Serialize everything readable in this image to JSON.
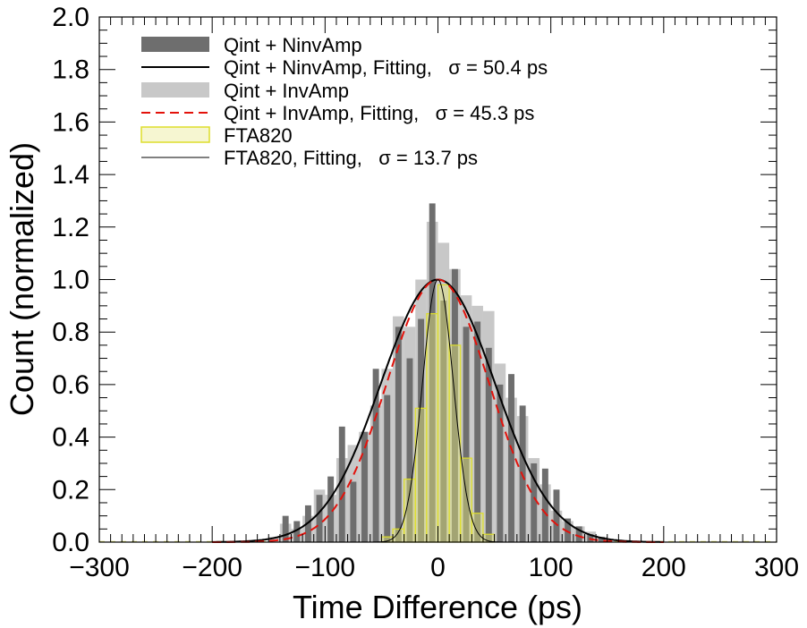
{
  "chart_data": {
    "type": "bar",
    "xlabel": "Time Difference (ps)",
    "ylabel": "Count (normalized)",
    "xlim": [
      -300,
      300
    ],
    "ylim": [
      0,
      2.0
    ],
    "bin_width": 10,
    "xticks": [
      "−300",
      "−200",
      "−100",
      "0",
      "100",
      "200",
      "300"
    ],
    "xtick_values": [
      -300,
      -200,
      -100,
      0,
      100,
      200,
      300
    ],
    "yticks": [
      "0.0",
      "0.2",
      "0.4",
      "0.6",
      "0.8",
      "1.0",
      "1.2",
      "1.4",
      "1.6",
      "1.8",
      "2.0"
    ],
    "ytick_values": [
      0,
      0.2,
      0.4,
      0.6,
      0.8,
      1.0,
      1.2,
      1.4,
      1.6,
      1.8,
      2.0
    ],
    "grid": false,
    "legend_position": "top-left",
    "legend": [
      {
        "label": "Qint + NinvAmp",
        "kind": "fill",
        "color": "#6e6e6e"
      },
      {
        "label": "Qint + NinvAmp, Fitting,   σ = 50.4 ps",
        "kind": "line",
        "color": "#000000",
        "dash": "none"
      },
      {
        "label": "Qint + InvAmp",
        "kind": "fill",
        "color": "#c8c8c8"
      },
      {
        "label": "Qint + InvAmp, Fitting,   σ = 45.3 ps",
        "kind": "line",
        "color": "#e3120b",
        "dash": "10,6"
      },
      {
        "label": "FTA820",
        "kind": "box",
        "color": "#e4e67a"
      },
      {
        "label": "FTA820, Fitting,   σ = 13.7 ps",
        "kind": "thinline",
        "color": "#000000",
        "dash": "none"
      }
    ],
    "series": [
      {
        "name": "Qint + InvAmp",
        "type": "histogram",
        "color": "#c8c8c8",
        "bins": [
          [
            -150,
            0.02
          ],
          [
            -140,
            0.07
          ],
          [
            -130,
            0.05
          ],
          [
            -120,
            0.1
          ],
          [
            -110,
            0.2
          ],
          [
            -100,
            0.18
          ],
          [
            -90,
            0.32
          ],
          [
            -80,
            0.37
          ],
          [
            -70,
            0.42
          ],
          [
            -60,
            0.52
          ],
          [
            -50,
            0.66
          ],
          [
            -40,
            0.86
          ],
          [
            -30,
            0.82
          ],
          [
            -20,
            1.0
          ],
          [
            -10,
            1.22
          ],
          [
            0,
            1.14
          ],
          [
            10,
            1.04
          ],
          [
            20,
            0.94
          ],
          [
            30,
            0.9
          ],
          [
            40,
            0.88
          ],
          [
            50,
            0.68
          ],
          [
            60,
            0.55
          ],
          [
            70,
            0.48
          ],
          [
            80,
            0.32
          ],
          [
            90,
            0.22
          ],
          [
            100,
            0.12
          ],
          [
            110,
            0.08
          ],
          [
            120,
            0.06
          ],
          [
            130,
            0.04
          ],
          [
            140,
            0.02
          ]
        ]
      },
      {
        "name": "Qint + NinvAmp",
        "type": "histogram",
        "color": "#6e6e6e",
        "bins": [
          [
            -140,
            0.1
          ],
          [
            -130,
            0.08
          ],
          [
            -120,
            0.14
          ],
          [
            -110,
            0.18
          ],
          [
            -100,
            0.25
          ],
          [
            -90,
            0.44
          ],
          [
            -80,
            0.23
          ],
          [
            -70,
            0.42
          ],
          [
            -60,
            0.66
          ],
          [
            -50,
            0.56
          ],
          [
            -40,
            0.82
          ],
          [
            -30,
            0.7
          ],
          [
            -20,
            0.85
          ],
          [
            -10,
            1.29
          ],
          [
            0,
            0.92
          ],
          [
            10,
            1.04
          ],
          [
            20,
            0.82
          ],
          [
            30,
            0.84
          ],
          [
            40,
            0.74
          ],
          [
            50,
            0.6
          ],
          [
            60,
            0.64
          ],
          [
            70,
            0.52
          ],
          [
            80,
            0.3
          ],
          [
            90,
            0.28
          ],
          [
            100,
            0.2
          ],
          [
            110,
            0.09
          ],
          [
            120,
            0.06
          ],
          [
            130,
            0.03
          ],
          [
            140,
            0.02
          ]
        ]
      },
      {
        "name": "FTA820",
        "type": "histogram",
        "color": "#e4e67a",
        "bins": [
          [
            -50,
            0.02
          ],
          [
            -40,
            0.05
          ],
          [
            -30,
            0.24
          ],
          [
            -20,
            0.51
          ],
          [
            -10,
            0.87
          ],
          [
            0,
            0.98
          ],
          [
            10,
            0.75
          ],
          [
            20,
            0.32
          ],
          [
            30,
            0.11
          ],
          [
            40,
            0.03
          ]
        ]
      },
      {
        "name": "Qint + NinvAmp, Fitting",
        "type": "gaussian",
        "mean": 0,
        "sigma": 50.4,
        "amplitude": 1.0,
        "range": [
          -200,
          200
        ],
        "color": "#000000"
      },
      {
        "name": "Qint + InvAmp, Fitting",
        "type": "gaussian",
        "mean": 0,
        "sigma": 45.3,
        "amplitude": 1.0,
        "range": [
          -200,
          200
        ],
        "color": "#e3120b"
      },
      {
        "name": "FTA820, Fitting",
        "type": "gaussian",
        "mean": 0,
        "sigma": 13.7,
        "amplitude": 1.0,
        "range": [
          -200,
          200
        ],
        "color": "#000000"
      }
    ]
  }
}
